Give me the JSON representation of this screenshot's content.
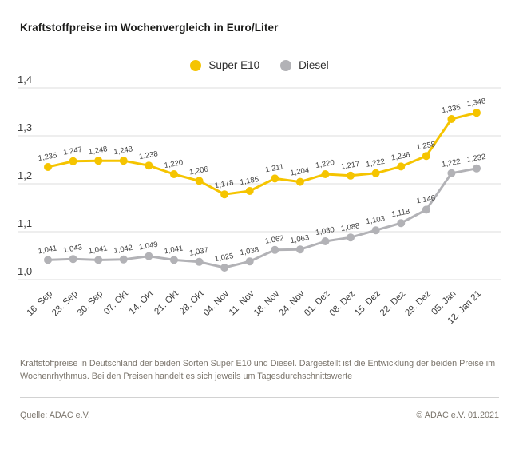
{
  "header": {
    "title": "Kraftstoffpreise im Wochenvergleich in Euro/Liter"
  },
  "legend": {
    "items": [
      {
        "label": "Super E10",
        "color": "#F5C400"
      },
      {
        "label": "Diesel",
        "color": "#B2B2B6"
      }
    ]
  },
  "chart_data": {
    "type": "line",
    "title": "Kraftstoffpreise im Wochenvergleich in Euro/Liter",
    "unit": "Euro/Liter",
    "grid": true,
    "legend_position": "top-center",
    "ylim": [
      1.0,
      1.4
    ],
    "yticks": [
      {
        "value": 1.0,
        "label": "1,0"
      },
      {
        "value": 1.1,
        "label": "1,1"
      },
      {
        "value": 1.2,
        "label": "1,2"
      },
      {
        "value": 1.3,
        "label": "1,3"
      },
      {
        "value": 1.4,
        "label": "1,4"
      }
    ],
    "categories": [
      "16. Sep",
      "23. Sep",
      "30. Sep",
      "07. Okt",
      "14. Okt",
      "21. Okt",
      "28. Okt",
      "04. Nov",
      "11. Nov",
      "18. Nov",
      "24. Nov",
      "01. Dez",
      "08. Dez",
      "15. Dez",
      "22. Dez",
      "29. Dez",
      "05. Jan",
      "12. Jan 21"
    ],
    "series": [
      {
        "name": "Super E10",
        "color": "#F5C400",
        "values": [
          1.235,
          1.247,
          1.248,
          1.248,
          1.238,
          1.22,
          1.206,
          1.178,
          1.185,
          1.211,
          1.204,
          1.22,
          1.217,
          1.222,
          1.236,
          1.258,
          1.335,
          1.348
        ],
        "labels": [
          "1,235",
          "1,247",
          "1,248",
          "1,248",
          "1,238",
          "1,220",
          "1,206",
          "1,178",
          "1,185",
          "1,211",
          "1,204",
          "1,220",
          "1,217",
          "1,222",
          "1,236",
          "1,258",
          "1,335",
          "1,348"
        ]
      },
      {
        "name": "Diesel",
        "color": "#B2B2B6",
        "values": [
          1.041,
          1.043,
          1.041,
          1.042,
          1.049,
          1.041,
          1.037,
          1.025,
          1.038,
          1.062,
          1.063,
          1.08,
          1.088,
          1.103,
          1.118,
          1.146,
          1.222,
          1.232
        ],
        "labels": [
          "1,041",
          "1,043",
          "1,041",
          "1,042",
          "1,049",
          "1,041",
          "1,037",
          "1,025",
          "1,038",
          "1,062",
          "1,063",
          "1,080",
          "1,088",
          "1,103",
          "1,118",
          "1,146",
          "1,222",
          "1,232"
        ]
      }
    ]
  },
  "description": {
    "text": "Kraftstoffpreise in Deutschland der beiden Sorten Super E10 und Diesel. Dargestellt ist die Entwicklung der beiden Preise im Wochenrhythmus. Bei den Preisen handelt es sich jeweils um Tagesdurchschnittswerte"
  },
  "footer": {
    "source": "Quelle: ADAC e.V.",
    "copyright": "© ADAC e.V. 01.2021"
  }
}
